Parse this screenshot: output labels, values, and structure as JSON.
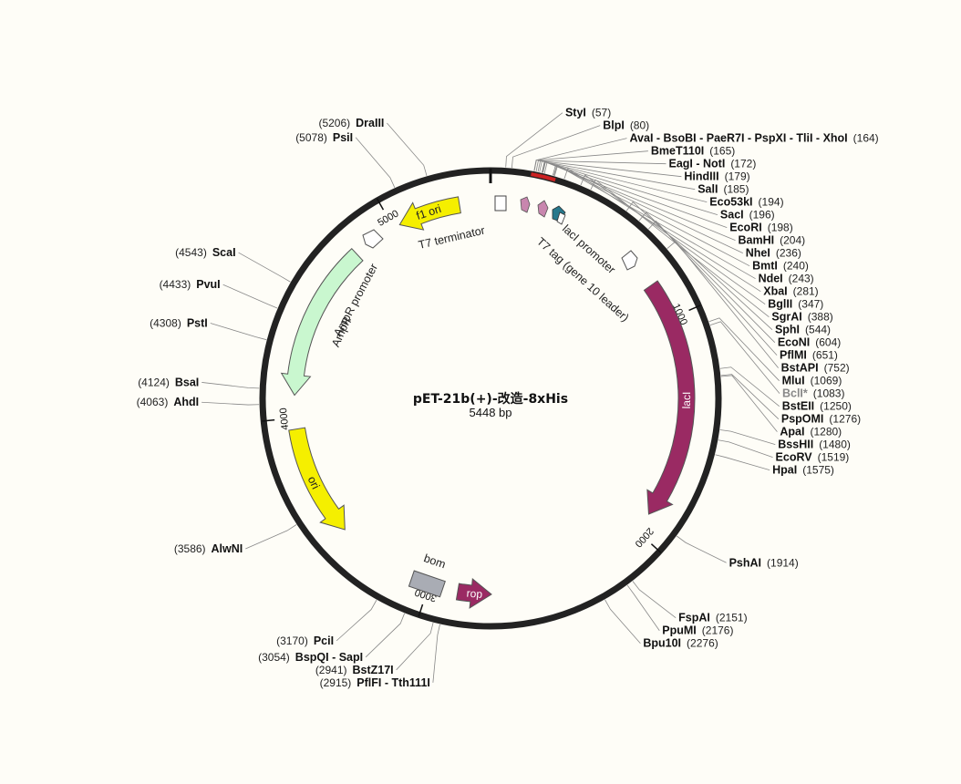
{
  "plasmid": {
    "name": "pET-21b(+)-改造-8xHis",
    "length_label": "5448 bp",
    "length": 5448
  },
  "colors": {
    "backbone": "#222222",
    "lacI": "#9a2a63",
    "rop": "#9a2a63",
    "f1_ori": "#f5ef00",
    "ori": "#f5ef00",
    "AmpR": "#c9f7cf",
    "bom": "#a9acb4",
    "t7tag": "#26788c",
    "lacO": "#c886ae",
    "mcs_highlight": "#cc2222"
  },
  "ticks": [
    {
      "pos": 0,
      "label": ""
    },
    {
      "pos": 1000,
      "label": "1000"
    },
    {
      "pos": 2000,
      "label": "2000"
    },
    {
      "pos": 3000,
      "label": "3000"
    },
    {
      "pos": 4000,
      "label": "4000"
    },
    {
      "pos": 5000,
      "label": "5000"
    }
  ],
  "features": [
    {
      "name": "lacI",
      "label": "lacI",
      "start": 830,
      "end": 1910,
      "dir": 1,
      "color": "#9a2a63",
      "label_inside": true
    },
    {
      "name": "rop",
      "label": "rop",
      "start": 2720,
      "end": 2870,
      "dir": -1,
      "color": "#9a2a63",
      "label_inside": true
    },
    {
      "name": "ori",
      "label": "ori",
      "start": 3450,
      "end": 3950,
      "dir": -1,
      "color": "#f5ef00",
      "label_inside": true
    },
    {
      "name": "AmpR",
      "label": "AmpR",
      "start": 4100,
      "end": 4800,
      "dir": -1,
      "color": "#c9f7cf",
      "label_inside": false
    },
    {
      "name": "f1 ori",
      "label": "f1 ori",
      "start": 5030,
      "end": 5310,
      "dir": -1,
      "color": "#f5ef00",
      "label_inside": true
    },
    {
      "name": "bom",
      "label": "bom",
      "start": 2960,
      "end": 3060,
      "dir": 0,
      "color": "#a9acb4",
      "label_inside": false
    }
  ],
  "feature_labels": [
    {
      "name": "T7 terminator",
      "text": "T7 terminator"
    },
    {
      "name": "lacI promoter",
      "text": "lacI promoter"
    },
    {
      "name": "T7 tag",
      "text": "T7 tag (gene 10 leader)"
    },
    {
      "name": "AmpR promoter",
      "text": "AmpR promoter"
    }
  ],
  "sites": [
    {
      "name": "StyI",
      "pos": 57,
      "side": "right"
    },
    {
      "name": "BlpI",
      "pos": 80,
      "side": "right"
    },
    {
      "name": "AvaI - BsoBI - PaeR7I - PspXI - TliI - XhoI",
      "pos": 164,
      "side": "right"
    },
    {
      "name": "BmeT110I",
      "pos": 165,
      "side": "right"
    },
    {
      "name": "EagI - NotI",
      "pos": 172,
      "side": "right"
    },
    {
      "name": "HindIII",
      "pos": 179,
      "side": "right"
    },
    {
      "name": "SalI",
      "pos": 185,
      "side": "right"
    },
    {
      "name": "Eco53kI",
      "pos": 194,
      "side": "right"
    },
    {
      "name": "SacI",
      "pos": 196,
      "side": "right"
    },
    {
      "name": "EcoRI",
      "pos": 198,
      "side": "right"
    },
    {
      "name": "BamHI",
      "pos": 204,
      "side": "right"
    },
    {
      "name": "NheI",
      "pos": 236,
      "side": "right"
    },
    {
      "name": "BmtI",
      "pos": 240,
      "side": "right"
    },
    {
      "name": "NdeI",
      "pos": 243,
      "side": "right"
    },
    {
      "name": "XbaI",
      "pos": 281,
      "side": "right"
    },
    {
      "name": "BglII",
      "pos": 347,
      "side": "right"
    },
    {
      "name": "SgrAI",
      "pos": 388,
      "side": "right"
    },
    {
      "name": "SphI",
      "pos": 544,
      "side": "right"
    },
    {
      "name": "EcoNI",
      "pos": 604,
      "side": "right"
    },
    {
      "name": "PflMI",
      "pos": 651,
      "side": "right"
    },
    {
      "name": "BstAPI",
      "pos": 752,
      "side": "right"
    },
    {
      "name": "MluI",
      "pos": 1069,
      "side": "right"
    },
    {
      "name": "BclI*",
      "pos": 1083,
      "side": "right",
      "muted": true
    },
    {
      "name": "BstEII",
      "pos": 1250,
      "side": "right"
    },
    {
      "name": "PspOMI",
      "pos": 1276,
      "side": "right"
    },
    {
      "name": "ApaI",
      "pos": 1280,
      "side": "right"
    },
    {
      "name": "BssHII",
      "pos": 1480,
      "side": "right"
    },
    {
      "name": "EcoRV",
      "pos": 1519,
      "side": "right"
    },
    {
      "name": "HpaI",
      "pos": 1575,
      "side": "right"
    },
    {
      "name": "PshAI",
      "pos": 1914,
      "side": "right"
    },
    {
      "name": "FspAI",
      "pos": 2151,
      "side": "right"
    },
    {
      "name": "PpuMI",
      "pos": 2176,
      "side": "right"
    },
    {
      "name": "Bpu10I",
      "pos": 2276,
      "side": "right"
    },
    {
      "name": "PflFI - Tth111I",
      "pos": 2915,
      "side": "left"
    },
    {
      "name": "BstZ17I",
      "pos": 2941,
      "side": "left"
    },
    {
      "name": "BspQI - SapI",
      "pos": 3054,
      "side": "left"
    },
    {
      "name": "PciI",
      "pos": 3170,
      "side": "left"
    },
    {
      "name": "AlwNI",
      "pos": 3586,
      "side": "left"
    },
    {
      "name": "AhdI",
      "pos": 4063,
      "side": "left"
    },
    {
      "name": "BsaI",
      "pos": 4124,
      "side": "left"
    },
    {
      "name": "PstI",
      "pos": 4308,
      "side": "left"
    },
    {
      "name": "PvuI",
      "pos": 4433,
      "side": "left"
    },
    {
      "name": "ScaI",
      "pos": 4543,
      "side": "left"
    },
    {
      "name": "PsiI",
      "pos": 5078,
      "side": "left"
    },
    {
      "name": "DraIII",
      "pos": 5206,
      "side": "left"
    }
  ]
}
